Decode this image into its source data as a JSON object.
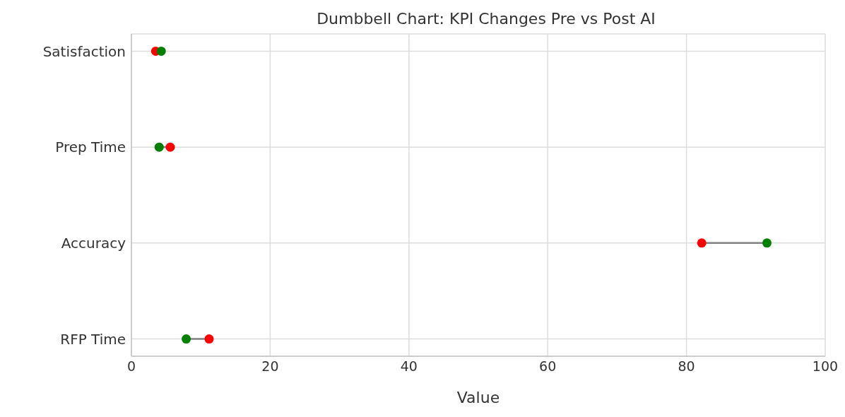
{
  "chart_data": {
    "type": "scatter",
    "title": "Dumbbell Chart: KPI Changes Pre vs Post AI",
    "xlabel": "Value",
    "orientation": "horizontal",
    "categories": [
      "Satisfaction",
      "Prep Time",
      "Accuracy",
      "RFP Time"
    ],
    "series": [
      {
        "color": "#ff0000",
        "values": [
          3.5,
          5.6,
          82.2,
          11.2
        ]
      },
      {
        "color": "#008000",
        "values": [
          4.3,
          4.0,
          91.6,
          7.9
        ]
      }
    ],
    "xlim": [
      0,
      100
    ],
    "xticks": [
      0,
      20,
      40,
      60,
      80,
      100
    ],
    "grid": true,
    "marker": "circle"
  }
}
